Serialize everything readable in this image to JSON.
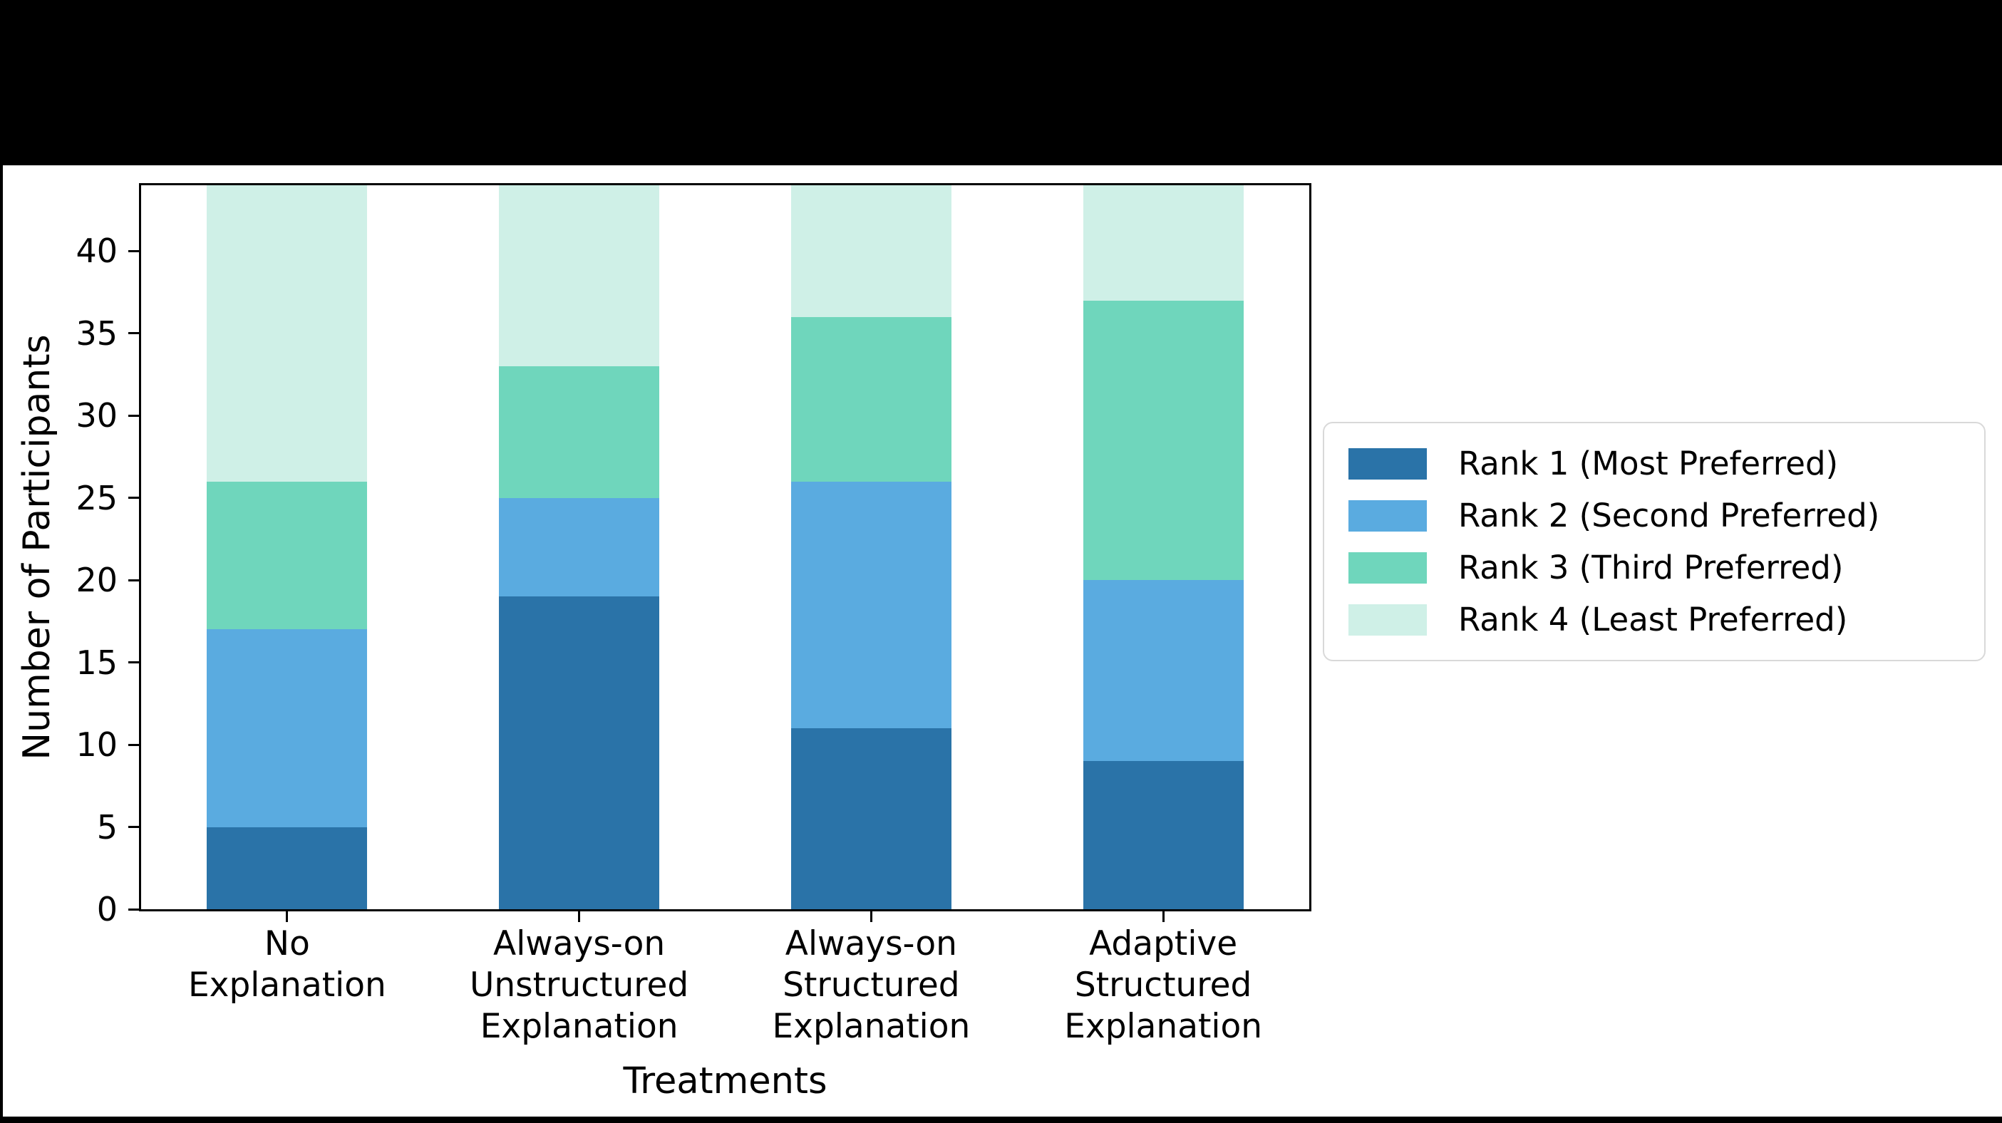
{
  "figure": {
    "background_color": "#000000",
    "panel_color": "#ffffff",
    "legend_border_color": "#d9d9d9"
  },
  "chart_data": {
    "type": "bar",
    "stacked": true,
    "orientation": "vertical",
    "title": "",
    "xlabel": "Treatments",
    "ylabel": "Number of Participants",
    "ylim": [
      0,
      44
    ],
    "yticks": [
      0,
      5,
      10,
      15,
      20,
      25,
      30,
      35,
      40
    ],
    "grid": false,
    "legend_position": "outside-right, vertically centered",
    "categories": [
      [
        "No",
        "Explanation"
      ],
      [
        "Always-on",
        "Unstructured",
        "Explanation"
      ],
      [
        "Always-on",
        "Structured",
        "Explanation"
      ],
      [
        "Adaptive",
        "Structured",
        "Explanation"
      ]
    ],
    "series": [
      {
        "name": "Rank 1 (Most Preferred)",
        "color": "#2A73A8",
        "values": [
          5,
          19,
          11,
          9
        ]
      },
      {
        "name": "Rank 2 (Second Preferred)",
        "color": "#5AABE0",
        "values": [
          12,
          6,
          15,
          11
        ]
      },
      {
        "name": "Rank 3 (Third Preferred)",
        "color": "#6FD6BC",
        "values": [
          9,
          8,
          10,
          17
        ]
      },
      {
        "name": "Rank 4 (Least Preferred)",
        "color": "#CFF0E7",
        "values": [
          18,
          11,
          8,
          7
        ]
      }
    ]
  }
}
